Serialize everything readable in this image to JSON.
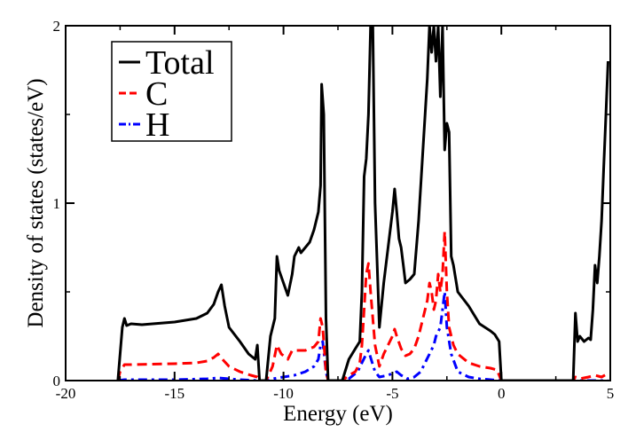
{
  "chart_data": {
    "type": "line",
    "title": "",
    "xlabel": "Energy (eV)",
    "ylabel": "Density of states (states/eV)",
    "xlim": [
      -20,
      5
    ],
    "ylim": [
      0,
      2
    ],
    "x_ticks": [
      -20,
      -15,
      -10,
      -5,
      0,
      5
    ],
    "x_tick_labels": [
      "-20",
      "-15",
      "-10",
      "-5",
      "0",
      "5"
    ],
    "y_ticks": [
      0,
      1,
      2
    ],
    "y_tick_labels": [
      "0",
      "1",
      "2"
    ],
    "grid": false,
    "legend_position": "top-left",
    "series": [
      {
        "name": "Total",
        "color": "#000000",
        "dash": "solid",
        "points": [
          [
            -17.6,
            0
          ],
          [
            -17.5,
            0.15
          ],
          [
            -17.4,
            0.3
          ],
          [
            -17.3,
            0.35
          ],
          [
            -17.2,
            0.31
          ],
          [
            -17.0,
            0.32
          ],
          [
            -16.5,
            0.315
          ],
          [
            -16,
            0.32
          ],
          [
            -15,
            0.33
          ],
          [
            -14,
            0.35
          ],
          [
            -13.5,
            0.38
          ],
          [
            -13.2,
            0.43
          ],
          [
            -13.0,
            0.5
          ],
          [
            -12.85,
            0.54
          ],
          [
            -12.7,
            0.42
          ],
          [
            -12.5,
            0.3
          ],
          [
            -12,
            0.22
          ],
          [
            -11.6,
            0.15
          ],
          [
            -11.3,
            0.12
          ],
          [
            -11.2,
            0.2
          ],
          [
            -11.1,
            0
          ],
          [
            -10.8,
            0
          ],
          [
            -10.6,
            0.25
          ],
          [
            -10.4,
            0.35
          ],
          [
            -10.3,
            0.7
          ],
          [
            -10.2,
            0.62
          ],
          [
            -10.0,
            0.55
          ],
          [
            -9.8,
            0.48
          ],
          [
            -9.6,
            0.6
          ],
          [
            -9.5,
            0.7
          ],
          [
            -9.3,
            0.75
          ],
          [
            -9.2,
            0.72
          ],
          [
            -9.0,
            0.75
          ],
          [
            -8.8,
            0.78
          ],
          [
            -8.6,
            0.85
          ],
          [
            -8.4,
            0.95
          ],
          [
            -8.3,
            1.1
          ],
          [
            -8.25,
            1.67
          ],
          [
            -8.15,
            1.5
          ],
          [
            -8.05,
            0.35
          ],
          [
            -7.95,
            0
          ],
          [
            -7.3,
            0
          ],
          [
            -7.0,
            0.12
          ],
          [
            -6.7,
            0.18
          ],
          [
            -6.5,
            0.22
          ],
          [
            -6.4,
            0.5
          ],
          [
            -6.3,
            1.15
          ],
          [
            -6.2,
            1.25
          ],
          [
            -6.1,
            1.5
          ],
          [
            -6.0,
            2.0
          ],
          [
            -5.9,
            2.0
          ],
          [
            -5.8,
            1.0
          ],
          [
            -5.6,
            0.3
          ],
          [
            -5.4,
            0.55
          ],
          [
            -5.2,
            0.75
          ],
          [
            -5.0,
            0.95
          ],
          [
            -4.9,
            1.08
          ],
          [
            -4.8,
            0.95
          ],
          [
            -4.7,
            0.8
          ],
          [
            -4.6,
            0.75
          ],
          [
            -4.5,
            0.65
          ],
          [
            -4.4,
            0.55
          ],
          [
            -4.2,
            0.57
          ],
          [
            -4.0,
            0.6
          ],
          [
            -3.8,
            0.9
          ],
          [
            -3.6,
            1.3
          ],
          [
            -3.4,
            1.7
          ],
          [
            -3.3,
            2.0
          ],
          [
            -3.2,
            1.85
          ],
          [
            -3.1,
            2.0
          ],
          [
            -3.0,
            1.8
          ],
          [
            -2.9,
            2.0
          ],
          [
            -2.8,
            1.6
          ],
          [
            -2.7,
            2.0
          ],
          [
            -2.6,
            1.3
          ],
          [
            -2.5,
            1.45
          ],
          [
            -2.4,
            1.4
          ],
          [
            -2.3,
            0.7
          ],
          [
            -2.2,
            0.65
          ],
          [
            -2.0,
            0.5
          ],
          [
            -1.5,
            0.42
          ],
          [
            -1.0,
            0.32
          ],
          [
            -0.5,
            0.28
          ],
          [
            -0.3,
            0.26
          ],
          [
            -0.1,
            0.22
          ],
          [
            0.0,
            0
          ],
          [
            3.3,
            0
          ],
          [
            3.4,
            0.38
          ],
          [
            3.5,
            0.22
          ],
          [
            3.6,
            0.25
          ],
          [
            3.8,
            0.22
          ],
          [
            4.0,
            0.24
          ],
          [
            4.1,
            0.23
          ],
          [
            4.2,
            0.4
          ],
          [
            4.3,
            0.65
          ],
          [
            4.4,
            0.55
          ],
          [
            4.5,
            0.7
          ],
          [
            4.6,
            0.9
          ],
          [
            4.7,
            1.2
          ],
          [
            4.8,
            1.5
          ],
          [
            4.9,
            1.8
          ]
        ]
      },
      {
        "name": "C",
        "color": "#ff0000",
        "dash": "dashed",
        "points": [
          [
            -17.6,
            0
          ],
          [
            -17.5,
            0.05
          ],
          [
            -17.3,
            0.09
          ],
          [
            -17.0,
            0.09
          ],
          [
            -15,
            0.095
          ],
          [
            -14,
            0.1
          ],
          [
            -13.5,
            0.11
          ],
          [
            -13.2,
            0.13
          ],
          [
            -13.0,
            0.15
          ],
          [
            -12.8,
            0.12
          ],
          [
            -12.5,
            0.08
          ],
          [
            -12,
            0.05
          ],
          [
            -11.5,
            0.03
          ],
          [
            -11.2,
            0.02
          ],
          [
            -11.1,
            0
          ],
          [
            -10.8,
            0
          ],
          [
            -10.5,
            0.08
          ],
          [
            -10.3,
            0.2
          ],
          [
            -10.1,
            0.15
          ],
          [
            -9.8,
            0.12
          ],
          [
            -9.6,
            0.17
          ],
          [
            -9.3,
            0.17
          ],
          [
            -9.0,
            0.17
          ],
          [
            -8.6,
            0.19
          ],
          [
            -8.4,
            0.22
          ],
          [
            -8.3,
            0.35
          ],
          [
            -8.2,
            0.3
          ],
          [
            -8.05,
            0.05
          ],
          [
            -7.95,
            0
          ],
          [
            -7.3,
            0
          ],
          [
            -7.0,
            0.03
          ],
          [
            -6.7,
            0.05
          ],
          [
            -6.5,
            0.1
          ],
          [
            -6.4,
            0.2
          ],
          [
            -6.3,
            0.4
          ],
          [
            -6.2,
            0.6
          ],
          [
            -6.1,
            0.66
          ],
          [
            -6.0,
            0.5
          ],
          [
            -5.8,
            0.2
          ],
          [
            -5.6,
            0.08
          ],
          [
            -5.4,
            0.15
          ],
          [
            -5.2,
            0.2
          ],
          [
            -5.0,
            0.25
          ],
          [
            -4.9,
            0.29
          ],
          [
            -4.8,
            0.25
          ],
          [
            -4.6,
            0.18
          ],
          [
            -4.4,
            0.14
          ],
          [
            -4.2,
            0.15
          ],
          [
            -4.0,
            0.18
          ],
          [
            -3.8,
            0.25
          ],
          [
            -3.6,
            0.35
          ],
          [
            -3.4,
            0.45
          ],
          [
            -3.3,
            0.55
          ],
          [
            -3.2,
            0.5
          ],
          [
            -3.1,
            0.4
          ],
          [
            -3.0,
            0.45
          ],
          [
            -2.9,
            0.6
          ],
          [
            -2.8,
            0.5
          ],
          [
            -2.7,
            0.6
          ],
          [
            -2.6,
            0.84
          ],
          [
            -2.5,
            0.5
          ],
          [
            -2.4,
            0.3
          ],
          [
            -2.2,
            0.2
          ],
          [
            -2.0,
            0.15
          ],
          [
            -1.5,
            0.1
          ],
          [
            -1.0,
            0.08
          ],
          [
            -0.5,
            0.07
          ],
          [
            -0.2,
            0.06
          ],
          [
            0.0,
            0
          ],
          [
            3.3,
            0
          ],
          [
            3.4,
            0.02
          ],
          [
            3.6,
            0.01
          ],
          [
            4.0,
            0.02
          ],
          [
            4.3,
            0.03
          ],
          [
            4.6,
            0.02
          ],
          [
            4.9,
            0.04
          ]
        ]
      },
      {
        "name": "H",
        "color": "#0000ff",
        "dash": "dashdot",
        "points": [
          [
            -17.6,
            0
          ],
          [
            -17.3,
            0.005
          ],
          [
            -15,
            0.005
          ],
          [
            -13.5,
            0.01
          ],
          [
            -13,
            0.015
          ],
          [
            -12.5,
            0.01
          ],
          [
            -12,
            0.005
          ],
          [
            -11.1,
            0
          ],
          [
            -10.8,
            0
          ],
          [
            -10.5,
            0.01
          ],
          [
            -10,
            0.02
          ],
          [
            -9.5,
            0.03
          ],
          [
            -9.0,
            0.05
          ],
          [
            -8.6,
            0.08
          ],
          [
            -8.4,
            0.12
          ],
          [
            -8.3,
            0.2
          ],
          [
            -8.2,
            0.22
          ],
          [
            -8.05,
            0.05
          ],
          [
            -7.95,
            0
          ],
          [
            -7.3,
            0
          ],
          [
            -7.0,
            0.01
          ],
          [
            -6.6,
            0.05
          ],
          [
            -6.4,
            0.1
          ],
          [
            -6.2,
            0.15
          ],
          [
            -6.1,
            0.17
          ],
          [
            -6.0,
            0.13
          ],
          [
            -5.8,
            0.05
          ],
          [
            -5.6,
            0.02
          ],
          [
            -5.2,
            0.03
          ],
          [
            -5.0,
            0.04
          ],
          [
            -4.8,
            0.05
          ],
          [
            -4.6,
            0.03
          ],
          [
            -4.3,
            0.01
          ],
          [
            -4.0,
            0.02
          ],
          [
            -3.7,
            0.05
          ],
          [
            -3.5,
            0.1
          ],
          [
            -3.3,
            0.15
          ],
          [
            -3.1,
            0.2
          ],
          [
            -3.0,
            0.25
          ],
          [
            -2.8,
            0.3
          ],
          [
            -2.7,
            0.4
          ],
          [
            -2.6,
            0.5
          ],
          [
            -2.5,
            0.3
          ],
          [
            -2.3,
            0.15
          ],
          [
            -2.0,
            0.05
          ],
          [
            -1.5,
            0.02
          ],
          [
            -1.0,
            0.01
          ],
          [
            0.0,
            0
          ],
          [
            4.9,
            0
          ]
        ]
      }
    ]
  }
}
